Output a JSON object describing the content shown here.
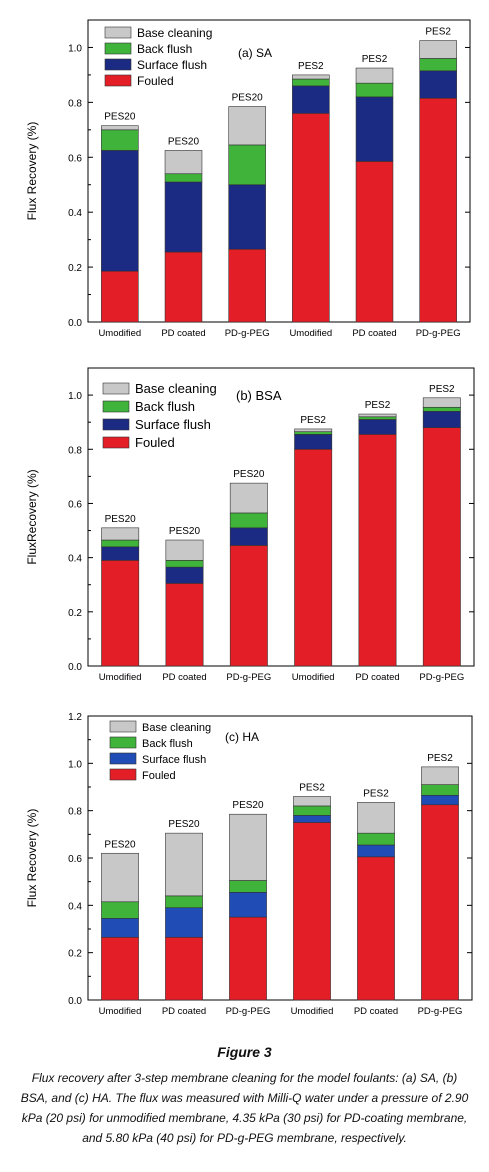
{
  "colors": {
    "base_cleaning": "#c8c8c8",
    "back_flush": "#3fb33a",
    "surface_flush_ab": "#1b2a82",
    "surface_flush_c": "#1f4db5",
    "fouled": "#e41e26"
  },
  "figure": {
    "label": "Figure 3",
    "caption": "Flux recovery after 3-step membrane cleaning for the model foulants: (a) SA, (b) BSA, and (c) HA. The flux was measured with Milli-Q water under a pressure of 2.90 kPa (20 psi) for unmodified membrane, 4.35 kPa (30 psi) for PD-coating membrane, and 5.80 kPa (40 psi) for PD-g-PEG membrane, respectively."
  },
  "chart_data": [
    {
      "type": "bar",
      "stacked": true,
      "panel_label": "(a) SA",
      "ylabel": "Flux Recovery (%)",
      "ylim": [
        0,
        1.1
      ],
      "yticks": [
        "0.0",
        "0.2",
        "0.4",
        "0.6",
        "0.8",
        "1.0"
      ],
      "categories": [
        "Umodified",
        "PD coated",
        "PD-g-PEG",
        "Umodified",
        "PD coated",
        "PD-g-PEG"
      ],
      "bar_labels": [
        "PES20",
        "PES20",
        "PES20",
        "PES2",
        "PES2",
        "PES2"
      ],
      "legend": [
        "Base cleaning",
        "Back flush",
        "Surface flush",
        "Fouled"
      ],
      "legend_position": "top-left",
      "series": [
        {
          "name": "Fouled",
          "values": [
            0.185,
            0.255,
            0.265,
            0.76,
            0.585,
            0.815
          ]
        },
        {
          "name": "Surface flush",
          "values": [
            0.44,
            0.255,
            0.235,
            0.1,
            0.235,
            0.1
          ]
        },
        {
          "name": "Back flush",
          "values": [
            0.075,
            0.03,
            0.145,
            0.025,
            0.05,
            0.045
          ]
        },
        {
          "name": "Base cleaning",
          "values": [
            0.015,
            0.085,
            0.14,
            0.015,
            0.055,
            0.065
          ]
        }
      ]
    },
    {
      "type": "bar",
      "stacked": true,
      "panel_label": "(b) BSA",
      "ylabel": "FluxRecovery (%)",
      "ylim": [
        0,
        1.1
      ],
      "yticks": [
        "0.0",
        "0.2",
        "0.4",
        "0.6",
        "0.8",
        "1.0"
      ],
      "categories": [
        "Umodified",
        "PD coated",
        "PD-g-PEG",
        "Umodified",
        "PD coated",
        "PD-g-PEG"
      ],
      "bar_labels": [
        "PES20",
        "PES20",
        "PES20",
        "PES2",
        "PES2",
        "PES2"
      ],
      "legend": [
        "Base cleaning",
        "Back flush",
        "Surface flush",
        "Fouled"
      ],
      "legend_position": "top-left",
      "series": [
        {
          "name": "Fouled",
          "values": [
            0.39,
            0.305,
            0.445,
            0.8,
            0.855,
            0.88
          ]
        },
        {
          "name": "Surface flush",
          "values": [
            0.05,
            0.06,
            0.065,
            0.055,
            0.055,
            0.06
          ]
        },
        {
          "name": "Back flush",
          "values": [
            0.025,
            0.025,
            0.055,
            0.01,
            0.01,
            0.015
          ]
        },
        {
          "name": "Base cleaning",
          "values": [
            0.045,
            0.075,
            0.11,
            0.01,
            0.01,
            0.035
          ]
        }
      ]
    },
    {
      "type": "bar",
      "stacked": true,
      "panel_label": "(c) HA",
      "ylabel": "Flux Recovery (%)",
      "ylim": [
        0,
        1.2
      ],
      "yticks": [
        "0.0",
        "0.2",
        "0.4",
        "0.6",
        "0.8",
        "1.0",
        "1.2"
      ],
      "categories": [
        "Umodified",
        "PD coated",
        "PD-g-PEG",
        "Umodified",
        "PD coated",
        "PD-g-PEG"
      ],
      "bar_labels": [
        "PES20",
        "PES20",
        "PES20",
        "PES2",
        "PES2",
        "PES2"
      ],
      "legend": [
        "Base cleaning",
        "Back flush",
        "Surface flush",
        "Fouled"
      ],
      "legend_position": "top-left",
      "series": [
        {
          "name": "Fouled",
          "values": [
            0.265,
            0.265,
            0.35,
            0.75,
            0.605,
            0.825
          ]
        },
        {
          "name": "Surface flush",
          "values": [
            0.08,
            0.125,
            0.105,
            0.03,
            0.05,
            0.04
          ]
        },
        {
          "name": "Back flush",
          "values": [
            0.07,
            0.05,
            0.05,
            0.04,
            0.05,
            0.045
          ]
        },
        {
          "name": "Base cleaning",
          "values": [
            0.205,
            0.265,
            0.28,
            0.04,
            0.13,
            0.075
          ]
        }
      ]
    }
  ]
}
